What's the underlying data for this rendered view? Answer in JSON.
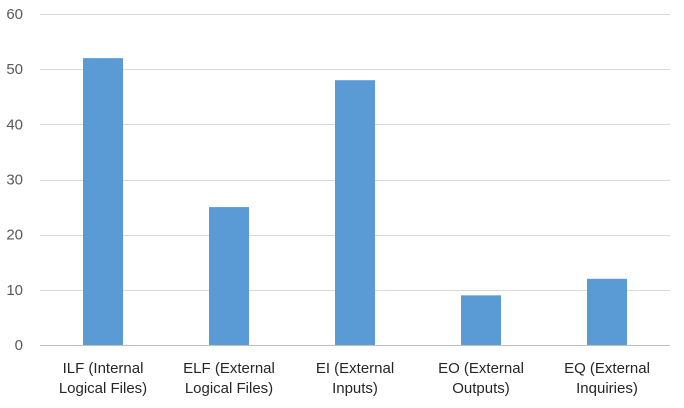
{
  "chart_data": {
    "type": "bar",
    "categories": [
      [
        "ILF (Internal",
        "Logical Files)"
      ],
      [
        "ELF (External",
        "Logical Files)"
      ],
      [
        "EI (External",
        "Inputs)"
      ],
      [
        "EO (External",
        "Outputs)"
      ],
      [
        "EQ (External",
        "Inquiries)"
      ]
    ],
    "values": [
      52,
      25,
      48,
      9,
      12
    ],
    "ylim": [
      0,
      60
    ],
    "yticks": [
      0,
      10,
      20,
      30,
      40,
      50,
      60
    ],
    "grid": true,
    "legend": "none",
    "colors": {
      "bar": "#5b9bd5",
      "grid": "#d9d9d9",
      "axis": "#bfbfbf"
    }
  }
}
